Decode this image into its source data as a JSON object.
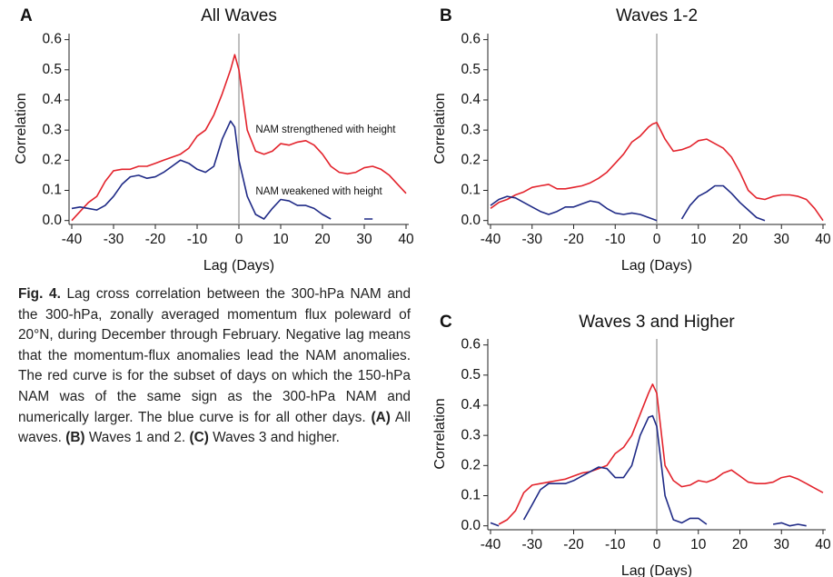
{
  "chart_data": [
    {
      "type": "line",
      "label": "A",
      "title": "All Waves",
      "xlabel": "Lag (Days)",
      "ylabel": "Correlation",
      "x": [
        -40,
        -38,
        -36,
        -34,
        -32,
        -30,
        -28,
        -26,
        -24,
        -22,
        -20,
        -18,
        -16,
        -14,
        -12,
        -10,
        -8,
        -6,
        -4,
        -2,
        -1,
        0,
        2,
        4,
        6,
        8,
        10,
        12,
        14,
        16,
        18,
        20,
        22,
        24,
        26,
        28,
        30,
        32,
        34,
        36,
        38,
        40
      ],
      "series": [
        {
          "name": "red",
          "color": "#e3232c",
          "values": [
            0.0,
            0.03,
            0.06,
            0.08,
            0.13,
            0.165,
            0.17,
            0.17,
            0.18,
            0.18,
            0.19,
            0.2,
            0.21,
            0.22,
            0.24,
            0.28,
            0.3,
            0.35,
            0.42,
            0.5,
            0.55,
            0.5,
            0.3,
            0.23,
            0.22,
            0.23,
            0.255,
            0.25,
            0.26,
            0.265,
            0.25,
            0.22,
            0.18,
            0.16,
            0.155,
            0.16,
            0.175,
            0.18,
            0.17,
            0.15,
            0.12,
            0.09
          ]
        },
        {
          "name": "blue",
          "color": "#1f2a86",
          "values": [
            0.04,
            0.045,
            0.04,
            0.035,
            0.05,
            0.08,
            0.12,
            0.145,
            0.15,
            0.14,
            0.145,
            0.16,
            0.18,
            0.2,
            0.19,
            0.17,
            0.16,
            0.18,
            0.27,
            0.33,
            0.31,
            0.2,
            0.08,
            0.02,
            0.005,
            0.04,
            0.07,
            0.065,
            0.05,
            0.05,
            0.04,
            0.02,
            0.005,
            null,
            null,
            null,
            0.005,
            0.005,
            null,
            null,
            null,
            null
          ]
        }
      ],
      "annotations": [
        "NAM strengthened with height",
        "NAM weakened with height"
      ],
      "vline": 0,
      "xlim": [
        -40,
        40
      ],
      "ylim": [
        -0.01,
        0.62
      ],
      "xticks": [
        -40,
        -30,
        -20,
        -10,
        0,
        10,
        20,
        30,
        40
      ],
      "yticks": [
        {
          "value": 0,
          "label": "0.0"
        },
        0.1,
        0.2,
        0.3,
        0.4,
        0.5,
        0.6
      ]
    },
    {
      "type": "line",
      "label": "B",
      "title": "Waves 1-2",
      "xlabel": "Lag (Days)",
      "ylabel": "Correlation",
      "x": [
        -40,
        -38,
        -36,
        -34,
        -32,
        -30,
        -28,
        -26,
        -24,
        -22,
        -20,
        -18,
        -16,
        -14,
        -12,
        -10,
        -8,
        -6,
        -4,
        -2,
        -1,
        0,
        2,
        4,
        6,
        8,
        10,
        12,
        14,
        16,
        18,
        20,
        22,
        24,
        26,
        28,
        30,
        32,
        34,
        36,
        38,
        40
      ],
      "series": [
        {
          "name": "red",
          "color": "#e3232c",
          "values": [
            0.04,
            0.06,
            0.07,
            0.085,
            0.095,
            0.11,
            0.115,
            0.12,
            0.105,
            0.105,
            0.11,
            0.115,
            0.125,
            0.14,
            0.16,
            0.19,
            0.22,
            0.26,
            0.28,
            0.31,
            0.32,
            0.325,
            0.27,
            0.23,
            0.235,
            0.245,
            0.265,
            0.27,
            0.255,
            0.24,
            0.21,
            0.16,
            0.1,
            0.075,
            0.07,
            0.08,
            0.085,
            0.085,
            0.08,
            0.07,
            0.04,
            0.0
          ]
        },
        {
          "name": "blue",
          "color": "#1f2a86",
          "values": [
            0.05,
            0.07,
            0.08,
            0.075,
            0.06,
            0.045,
            0.03,
            0.02,
            0.03,
            0.045,
            0.045,
            0.055,
            0.065,
            0.06,
            0.04,
            0.025,
            0.02,
            0.025,
            0.02,
            0.01,
            0.005,
            0.0,
            null,
            null,
            0.005,
            0.05,
            0.08,
            0.095,
            0.115,
            0.115,
            0.09,
            0.06,
            0.035,
            0.01,
            0.0,
            null,
            null,
            null,
            null,
            null,
            null,
            null
          ]
        }
      ],
      "vline": 0,
      "xlim": [
        -40,
        40
      ],
      "ylim": [
        -0.01,
        0.62
      ],
      "xticks": [
        -40,
        -30,
        -20,
        -10,
        0,
        10,
        20,
        30,
        40
      ],
      "yticks": [
        {
          "value": 0,
          "label": "0.0"
        },
        0.1,
        0.2,
        0.3,
        0.4,
        0.5,
        0.6
      ]
    },
    {
      "type": "line",
      "label": "C",
      "title": "Waves 3 and Higher",
      "xlabel": "Lag (Days)",
      "ylabel": "Correlation",
      "x": [
        -40,
        -38,
        -36,
        -34,
        -32,
        -30,
        -28,
        -26,
        -24,
        -22,
        -20,
        -18,
        -16,
        -14,
        -12,
        -10,
        -8,
        -6,
        -4,
        -2,
        -1,
        0,
        2,
        4,
        6,
        8,
        10,
        12,
        14,
        16,
        18,
        20,
        22,
        24,
        26,
        28,
        30,
        32,
        34,
        36,
        38,
        40
      ],
      "series": [
        {
          "name": "red",
          "color": "#e3232c",
          "values": [
            null,
            0.005,
            0.02,
            0.05,
            0.11,
            0.135,
            0.14,
            0.145,
            0.15,
            0.155,
            0.165,
            0.175,
            0.18,
            0.19,
            0.2,
            0.24,
            0.26,
            0.3,
            0.37,
            0.44,
            0.47,
            0.44,
            0.2,
            0.15,
            0.13,
            0.135,
            0.15,
            0.145,
            0.155,
            0.175,
            0.185,
            0.165,
            0.145,
            0.14,
            0.14,
            0.145,
            0.16,
            0.165,
            0.155,
            0.14,
            0.125,
            0.11
          ]
        },
        {
          "name": "blue",
          "color": "#1f2a86",
          "values": [
            0.01,
            0.0,
            null,
            null,
            0.02,
            0.07,
            0.12,
            0.14,
            0.14,
            0.14,
            0.15,
            0.165,
            0.18,
            0.195,
            0.19,
            0.16,
            0.16,
            0.2,
            0.3,
            0.36,
            0.365,
            0.33,
            0.1,
            0.02,
            0.01,
            0.025,
            0.025,
            0.005,
            null,
            null,
            null,
            null,
            null,
            null,
            null,
            0.005,
            0.01,
            0.0,
            0.005,
            0.0,
            null,
            null
          ]
        }
      ],
      "vline": 0,
      "xlim": [
        -40,
        40
      ],
      "ylim": [
        -0.01,
        0.62
      ],
      "xticks": [
        -40,
        -30,
        -20,
        -10,
        0,
        10,
        20,
        30,
        40
      ],
      "yticks": [
        {
          "value": 0,
          "label": "0.0"
        },
        0.1,
        0.2,
        0.3,
        0.4,
        0.5,
        0.6
      ]
    }
  ],
  "caption": [
    "Fig. 4.",
    "Lag cross correlation between the 300-hPa NAM and the 300-hPa, zonally averaged momentum flux poleward of 20°N, during December through February. Negative lag means that the momentum-flux anomalies lead the NAM anomalies. The red curve is for the subset of days on which the 150-hPa NAM was of the same sign as the 300-hPa NAM and numerically larger. The blue curve is for all other days.",
    "(A)",
    "All waves.",
    "(B)",
    "Waves 1 and 2.",
    "(C)",
    "Waves 3 and higher."
  ]
}
